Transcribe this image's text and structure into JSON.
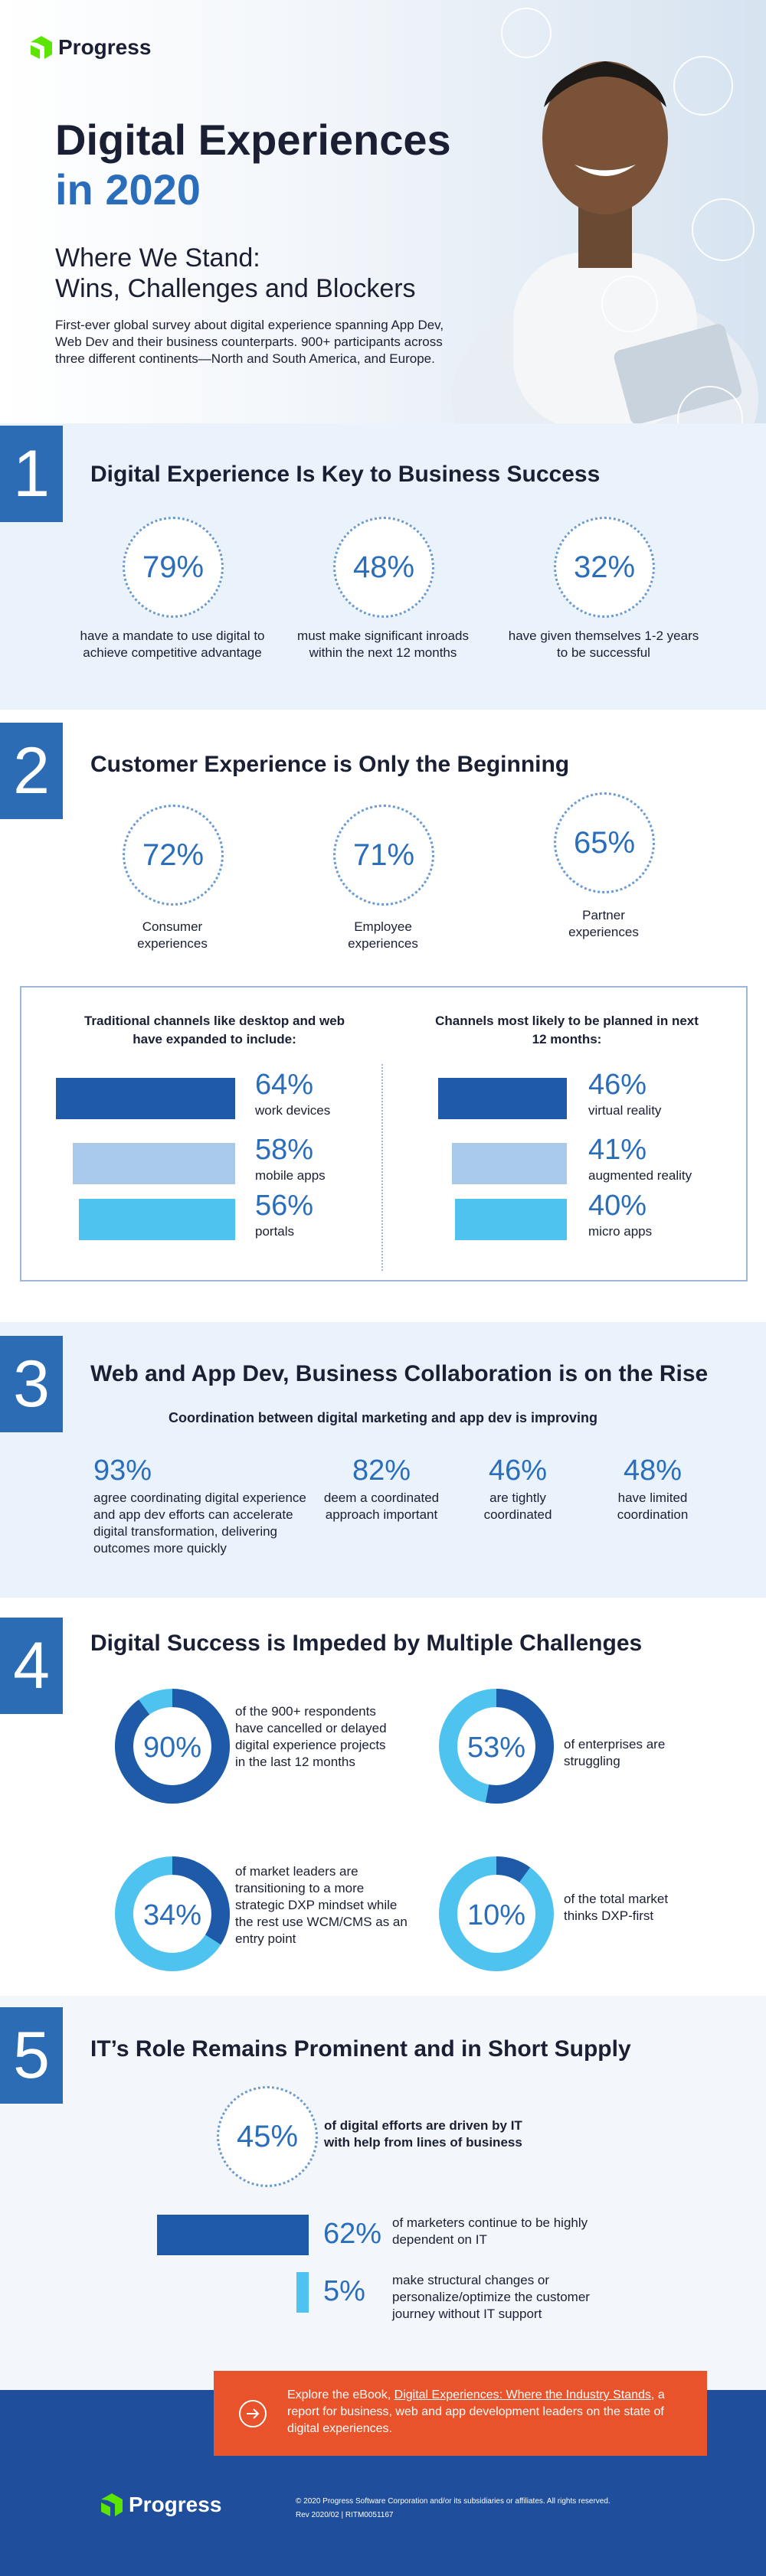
{
  "header": {
    "logo": "Progress",
    "title_line1": "Digital Experiences",
    "title_line2": "in 2020",
    "subtitle_line1": "Where We Stand:",
    "subtitle_line2": "Wins, Challenges and Blockers",
    "description": "First-ever global survey about digital experience spanning App Dev, Web Dev and their business counterparts. 900+ participants across three different continents—North and South America, and Europe."
  },
  "sections": [
    {
      "number": "1",
      "heading": "Digital Experience Is Key to Business Success",
      "stats": [
        {
          "label": "79%",
          "text": "have a mandate to use digital to achieve competitive advantage"
        },
        {
          "label": "48%",
          "text": "must make significant inroads within the next 12 months"
        },
        {
          "label": "32%",
          "text": "have given themselves 1-2 years to be successful"
        }
      ]
    },
    {
      "number": "2",
      "heading": "Customer Experience is Only the Beginning",
      "stats": [
        {
          "label": "72%",
          "text": "Consumer experiences"
        },
        {
          "label": "71%",
          "text": "Employee experiences"
        },
        {
          "label": "65%",
          "text": "Partner experiences"
        }
      ],
      "panels": [
        {
          "title": "Traditional channels like desktop and web have expanded to include:",
          "bars": [
            {
              "value": 64,
              "label": "64%",
              "text": "work devices",
              "color": "#1e5aa8"
            },
            {
              "value": 58,
              "label": "58%",
              "text": "mobile apps",
              "color": "#a9c9ea"
            },
            {
              "value": 56,
              "label": "56%",
              "text": "portals",
              "color": "#4fc3ef"
            }
          ]
        },
        {
          "title": "Channels most likely to be planned in next 12 months:",
          "bars": [
            {
              "value": 46,
              "label": "46%",
              "text": "virtual reality",
              "color": "#1e5aa8"
            },
            {
              "value": 41,
              "label": "41%",
              "text": "augmented reality",
              "color": "#a9c9ea"
            },
            {
              "value": 40,
              "label": "40%",
              "text": "micro apps",
              "color": "#4fc3ef"
            }
          ]
        }
      ]
    },
    {
      "number": "3",
      "heading": "Web and App Dev, Business Collaboration is on the Rise",
      "subheading": "Coordination between digital marketing and app dev is improving",
      "stats": [
        {
          "label": "93%",
          "text": "agree coordinating digital experience and app dev efforts can accelerate digital transformation, delivering outcomes more quickly"
        },
        {
          "label": "82%",
          "text": "deem a coordinated approach important"
        },
        {
          "label": "46%",
          "text": "are tightly coordinated"
        },
        {
          "label": "48%",
          "text": "have limited coordination"
        }
      ]
    },
    {
      "number": "4",
      "heading": "Digital Success is Impeded by Multiple Challenges",
      "donuts": [
        {
          "value": 90,
          "label": "90%",
          "text": "of the 900+ respondents have cancelled or delayed digital experience projects in the last 12 months"
        },
        {
          "value": 53,
          "label": "53%",
          "text": "of enterprises are struggling"
        },
        {
          "value": 34,
          "label": "34%",
          "text": "of market leaders are transitioning to a more strategic DXP mindset while the rest use WCM/CMS as an entry point"
        },
        {
          "value": 10,
          "label": "10%",
          "text": "of the total market thinks DXP-first"
        }
      ]
    },
    {
      "number": "5",
      "heading": "IT’s Role Remains Prominent and in Short Supply",
      "highlight": {
        "label": "45%",
        "text": "of digital efforts are driven by IT with help from lines of business"
      },
      "bars": [
        {
          "value": 62,
          "label": "62%",
          "text": "of marketers continue to be highly dependent on IT",
          "color": "#1e5aa8"
        },
        {
          "value": 5,
          "label": "5%",
          "text": "make structural changes or personalize/optimize the customer journey without IT support",
          "color": "#4fc3ef"
        }
      ]
    }
  ],
  "cta": {
    "lead": "Explore the eBook, ",
    "link": "Digital Experiences: Where the Industry Stands",
    "rest": ", a report for business, web and app development leaders on the state of digital experiences."
  },
  "footer": {
    "logo": "Progress",
    "copyright": "© 2020 Progress Software Corporation and/or its subsidiaries or affiliates. All rights reserved.",
    "rev": "Rev 2020/02 | RITM0051167"
  }
}
